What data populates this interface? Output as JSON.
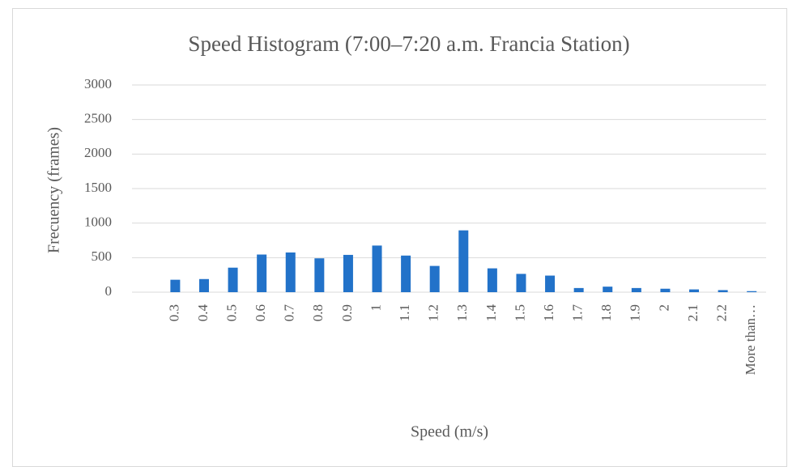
{
  "chart_data": {
    "type": "bar",
    "title": "Speed Histogram (7:00–7:20 a.m. Francia Station)",
    "x_label": "Speed (m/s)",
    "y_label": "Frecuency (frames)",
    "categories": [
      null,
      "0.3",
      "0.4",
      "0.5",
      "0.6",
      "0.7",
      "0.8",
      "0.9",
      "1",
      "1.1",
      "1.2",
      "1.3",
      "1.4",
      "1.5",
      "1.6",
      "1.7",
      "1.8",
      "1.9",
      "2",
      "2.1",
      "2.2",
      "More than…"
    ],
    "values": [
      null,
      180,
      190,
      355,
      545,
      575,
      490,
      540,
      675,
      530,
      380,
      895,
      345,
      265,
      240,
      60,
      80,
      60,
      50,
      40,
      30,
      15
    ],
    "color": "#2272c9",
    "ylim": [
      0,
      3000
    ],
    "yticks": [
      0,
      500,
      1000,
      1500,
      2000,
      2500,
      3000
    ],
    "grid": true
  }
}
